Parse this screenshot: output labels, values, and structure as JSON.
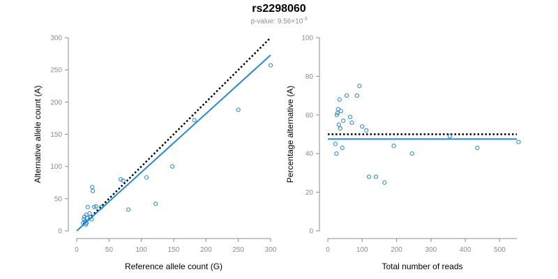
{
  "title": "rs2298060",
  "subtitle": {
    "prefix": "p-value: 9.56×10",
    "exponent": "-3"
  },
  "colors": {
    "points": "#1e88e5",
    "fit": "#1e88e5",
    "reference": "#000000",
    "axis": "#8c8c8c"
  },
  "chart_data": [
    {
      "type": "scatter",
      "xlabel": "Reference allele count (G)",
      "ylabel": "Alternative allele count (A)",
      "xlim": [
        0,
        300
      ],
      "ylim": [
        0,
        300
      ],
      "xticks": [
        0,
        50,
        100,
        150,
        200,
        250,
        300
      ],
      "yticks": [
        0,
        50,
        100,
        150,
        200,
        250,
        300
      ],
      "points": {
        "x": [
          10,
          11,
          12,
          13,
          14,
          15,
          15,
          16,
          17,
          20,
          22,
          23,
          24,
          25,
          27,
          30,
          38,
          68,
          72,
          80,
          108,
          122,
          148,
          182,
          250,
          300
        ],
        "y": [
          12,
          18,
          22,
          15,
          10,
          25,
          12,
          20,
          37,
          27,
          22,
          18,
          68,
          62,
          37,
          38,
          37,
          80,
          78,
          33,
          83,
          42,
          100,
          172,
          188,
          257
        ]
      },
      "reference_line": {
        "style": "dotted",
        "x": [
          10,
          300
        ],
        "y": [
          10,
          300
        ]
      },
      "fit_line": {
        "style": "solid",
        "x": [
          0,
          300
        ],
        "y": [
          0,
          273
        ]
      }
    },
    {
      "type": "scatter",
      "xlabel": "Total number of reads",
      "ylabel": "Percentage alternative (A)",
      "xlim": [
        0,
        550
      ],
      "ylim": [
        0,
        100
      ],
      "xticks": [
        0,
        100,
        200,
        300,
        400,
        500
      ],
      "yticks": [
        0,
        20,
        40,
        60,
        80,
        100
      ],
      "points": {
        "x": [
          22,
          25,
          26,
          28,
          30,
          32,
          34,
          36,
          38,
          42,
          45,
          55,
          65,
          70,
          85,
          92,
          100,
          112,
          120,
          140,
          165,
          192,
          245,
          355,
          435,
          555
        ],
        "y": [
          45,
          40,
          60,
          61,
          63,
          55,
          68,
          53,
          62,
          43,
          57,
          70,
          59,
          56,
          70,
          75,
          54,
          52,
          28,
          28,
          25,
          44,
          40,
          49,
          43,
          46
        ]
      },
      "reference_line": {
        "style": "dotted",
        "x": [
          0,
          550
        ],
        "y": [
          50,
          50
        ]
      },
      "fit_line": {
        "style": "solid",
        "x": [
          0,
          550
        ],
        "y": [
          47.5,
          47.5
        ]
      }
    }
  ]
}
